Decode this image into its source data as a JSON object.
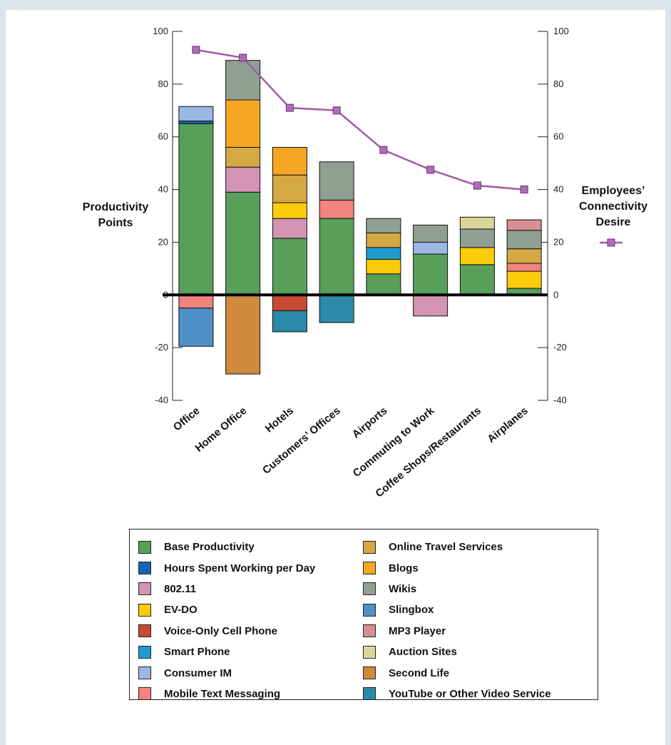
{
  "chart_data": {
    "type": "bar",
    "stacked": true,
    "categories": [
      "Office",
      "Home Office",
      "Hotels",
      "Customers’ Offices",
      "Airports",
      "Commuting to Work",
      "Coffee Shops/Restaurants",
      "Airplanes"
    ],
    "ylabel": "Productivity Points",
    "y2label": "Employees’ Connectivity Desire",
    "ylim": [
      -40,
      100
    ],
    "y2lim": [
      -40,
      100
    ],
    "yticks": [
      -40,
      -20,
      0,
      20,
      40,
      60,
      80,
      100
    ],
    "y2ticks": [
      -40,
      -20,
      0,
      20,
      40,
      60,
      80,
      100
    ],
    "legend_placement": "bottom",
    "series": [
      {
        "name": "Base Productivity",
        "color": "#58a05a",
        "values": [
          65,
          39,
          21.5,
          29,
          8,
          15.5,
          11.5,
          2.5
        ]
      },
      {
        "name": "Hours Spent Working per Day",
        "color": "#1565b0",
        "values": [
          1,
          0,
          0,
          0,
          0,
          0,
          0,
          0
        ]
      },
      {
        "name": "802.11",
        "color": "#d393b4",
        "values": [
          0,
          9.5,
          7.5,
          0,
          0,
          0,
          0,
          0
        ]
      },
      {
        "name": "EV-DO",
        "color": "#fccc0a",
        "values": [
          0,
          0,
          6,
          0,
          5.5,
          0,
          6.5,
          6.5
        ]
      },
      {
        "name": "Voice-Only Cell Phone",
        "color": "#c84a34",
        "values": [
          0,
          0,
          0,
          0,
          0,
          0,
          0,
          0
        ]
      },
      {
        "name": "Smart Phone",
        "color": "#1e9cd0",
        "values": [
          0,
          0,
          0,
          0,
          4.5,
          0,
          0,
          0
        ]
      },
      {
        "name": "Consumer IM",
        "color": "#9bb8e4",
        "values": [
          5.5,
          0,
          0,
          0,
          0,
          4.5,
          0,
          0
        ]
      },
      {
        "name": "Mobile Text Messaging",
        "color": "#f2837d",
        "values": [
          0,
          0,
          0,
          7,
          0,
          0,
          0,
          3
        ]
      },
      {
        "name": "Online Travel Services",
        "color": "#d4a842",
        "values": [
          0,
          7.5,
          10.5,
          0,
          5.5,
          0,
          0,
          5.5
        ]
      },
      {
        "name": "Blogs",
        "color": "#f6a622",
        "values": [
          0,
          18,
          10.5,
          0,
          0,
          0,
          0,
          0
        ]
      },
      {
        "name": "Wikis",
        "color": "#8fa092",
        "values": [
          0,
          15,
          0,
          14.5,
          5.5,
          6.5,
          7,
          7
        ]
      },
      {
        "name": "Slingbox",
        "color": "#5090c8",
        "values": [
          0,
          0,
          0,
          0,
          0,
          0,
          0,
          0
        ]
      },
      {
        "name": "MP3 Player",
        "color": "#d88f92",
        "values": [
          0,
          0,
          0,
          0,
          0,
          0,
          0,
          4
        ]
      },
      {
        "name": "Auction Sites",
        "color": "#dcd59a",
        "values": [
          0,
          0,
          0,
          0,
          0,
          0,
          4.5,
          0
        ]
      },
      {
        "name": "Second Life",
        "color": "#cf8a3e",
        "values": [
          0,
          0,
          0,
          0,
          0,
          0,
          0,
          0
        ]
      },
      {
        "name": "YouTube or Other Video Service",
        "color": "#2a8aa8",
        "values": [
          0,
          0,
          0,
          0,
          0,
          0,
          0,
          0
        ]
      }
    ],
    "negative_series": [
      {
        "name": "Mobile Text Messaging",
        "color": "#f2837d",
        "values": [
          -5,
          0,
          0,
          0,
          0,
          0,
          0,
          0
        ]
      },
      {
        "name": "Slingbox",
        "color": "#5090c8",
        "values": [
          -14.5,
          0,
          0,
          0,
          0,
          0,
          0,
          0
        ]
      },
      {
        "name": "Second Life",
        "color": "#cf8a3e",
        "values": [
          0,
          -30,
          0,
          0,
          0,
          0,
          0,
          0
        ]
      },
      {
        "name": "Voice-Only Cell Phone",
        "color": "#c84a34",
        "values": [
          0,
          0,
          -6,
          0,
          0,
          0,
          0,
          0
        ]
      },
      {
        "name": "YouTube or Other Video Service",
        "color": "#2a8aa8",
        "values": [
          0,
          0,
          -8,
          -10.5,
          0,
          0,
          0,
          0
        ]
      },
      {
        "name": "802.11",
        "color": "#d393b4",
        "values": [
          0,
          0,
          0,
          0,
          0,
          -8,
          0,
          0
        ]
      }
    ],
    "line_series": {
      "name": "Employees’ Connectivity Desire",
      "color": "#a25aa8",
      "marker_color": "#b06cb8",
      "values": [
        93,
        90,
        71,
        70,
        55,
        47.5,
        41.5,
        40
      ]
    }
  }
}
